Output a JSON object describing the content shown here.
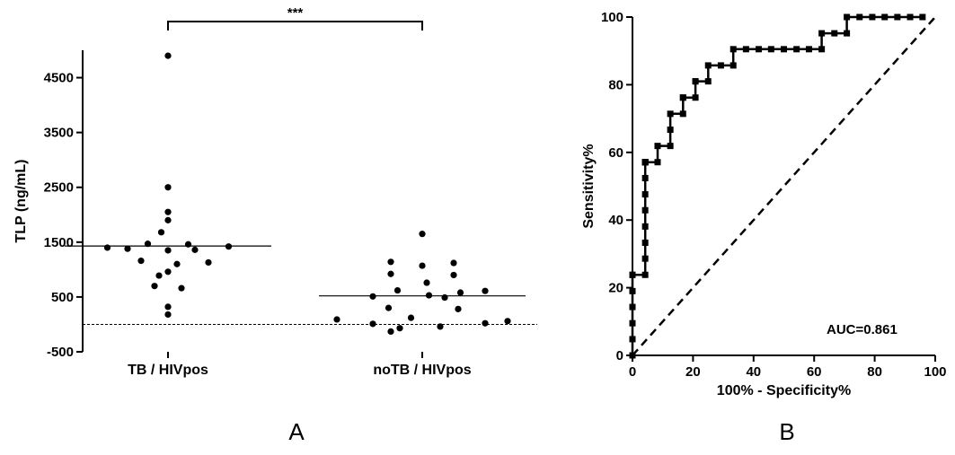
{
  "chart_data": [
    {
      "type": "scatter",
      "panel_label": "A",
      "ylabel": "TLP (ng/mL)",
      "ylim": [
        -500,
        5000
      ],
      "yticks": [
        -500,
        500,
        1500,
        2500,
        3500,
        4500
      ],
      "categories": [
        "TB / HIVpos",
        "noTB / HIVpos"
      ],
      "reference_line": 0,
      "significance": "***",
      "series": [
        {
          "category": "TB / HIVpos",
          "median": 1430,
          "points": [
            {
              "y": 4900,
              "o": 0
            },
            {
              "y": 2500,
              "o": 0
            },
            {
              "y": 2050,
              "o": 0
            },
            {
              "y": 1900,
              "o": 0
            },
            {
              "y": 1680,
              "o": -0.03
            },
            {
              "y": 1470,
              "o": -0.09
            },
            {
              "y": 1460,
              "o": 0.09
            },
            {
              "y": 1420,
              "o": 0.27
            },
            {
              "y": 1400,
              "o": -0.27
            },
            {
              "y": 1380,
              "o": -0.18
            },
            {
              "y": 1360,
              "o": 0.12
            },
            {
              "y": 1350,
              "o": 0.0
            },
            {
              "y": 1160,
              "o": -0.12
            },
            {
              "y": 1130,
              "o": 0.18
            },
            {
              "y": 1100,
              "o": 0.04
            },
            {
              "y": 960,
              "o": 0.0
            },
            {
              "y": 890,
              "o": -0.04
            },
            {
              "y": 700,
              "o": -0.06
            },
            {
              "y": 660,
              "o": 0.06
            },
            {
              "y": 320,
              "o": 0.0
            },
            {
              "y": 180,
              "o": 0.0
            }
          ]
        },
        {
          "category": "noTB / HIVpos",
          "median": 520,
          "points": [
            {
              "y": 1650,
              "o": 0.0
            },
            {
              "y": 1140,
              "o": -0.14
            },
            {
              "y": 1120,
              "o": 0.14
            },
            {
              "y": 1070,
              "o": 0.0
            },
            {
              "y": 920,
              "o": -0.14
            },
            {
              "y": 900,
              "o": 0.14
            },
            {
              "y": 760,
              "o": 0.02
            },
            {
              "y": 620,
              "o": -0.11
            },
            {
              "y": 610,
              "o": 0.28
            },
            {
              "y": 580,
              "o": 0.17
            },
            {
              "y": 530,
              "o": 0.03
            },
            {
              "y": 510,
              "o": -0.22
            },
            {
              "y": 490,
              "o": 0.1
            },
            {
              "y": 300,
              "o": -0.15
            },
            {
              "y": 280,
              "o": 0.16
            },
            {
              "y": 120,
              "o": -0.05
            },
            {
              "y": 90,
              "o": -0.38
            },
            {
              "y": 60,
              "o": 0.38
            },
            {
              "y": 20,
              "o": 0.28
            },
            {
              "y": 10,
              "o": -0.22
            },
            {
              "y": -40,
              "o": 0.08
            },
            {
              "y": -70,
              "o": -0.1
            },
            {
              "y": -130,
              "o": -0.14
            }
          ]
        }
      ]
    },
    {
      "type": "line",
      "panel_label": "B",
      "title": "",
      "xlabel": "100% - Specificity%",
      "ylabel": "Sensitivity%",
      "xlim": [
        0,
        100
      ],
      "ylim": [
        0,
        100
      ],
      "xticks": [
        0,
        20,
        40,
        60,
        80,
        100
      ],
      "yticks": [
        0,
        20,
        40,
        60,
        80,
        100
      ],
      "annotation": "AUC=0.861",
      "series": [
        {
          "style": "roc-step",
          "x": [
            0,
            0,
            0,
            0,
            0,
            0,
            0,
            4.2,
            4.2,
            4.2,
            4.2,
            4.2,
            4.2,
            4.2,
            4.2,
            4.2,
            4.2,
            4.2,
            4.2,
            8.3,
            8.3,
            12.5,
            12.5,
            12.5,
            16.7,
            16.7,
            16.7,
            20.8,
            20.8,
            20.8,
            25,
            25,
            29.2,
            33.3,
            33.3,
            37.5,
            41.7,
            45.8,
            50,
            54.2,
            58.3,
            62.5,
            62.5,
            66.7,
            70.8,
            70.8,
            75,
            79.2,
            83.3,
            87.5,
            91.7,
            95.8
          ],
          "y": [
            0,
            4.8,
            9.5,
            14.3,
            19,
            23.8,
            23.8,
            23.8,
            28.6,
            33.3,
            38.1,
            42.9,
            47.6,
            52.4,
            57.1,
            57.1,
            57.1,
            57.1,
            57.1,
            57.1,
            61.9,
            61.9,
            66.7,
            71.4,
            71.4,
            76.2,
            76.2,
            76.2,
            81,
            81,
            81,
            85.7,
            85.7,
            85.7,
            90.5,
            90.5,
            90.5,
            90.5,
            90.5,
            90.5,
            90.5,
            90.5,
            95.2,
            95.2,
            95.2,
            100,
            100,
            100,
            100,
            100,
            100,
            100
          ]
        },
        {
          "style": "diagonal-dashed",
          "x": [
            0,
            100
          ],
          "y": [
            0,
            100
          ]
        }
      ]
    }
  ]
}
